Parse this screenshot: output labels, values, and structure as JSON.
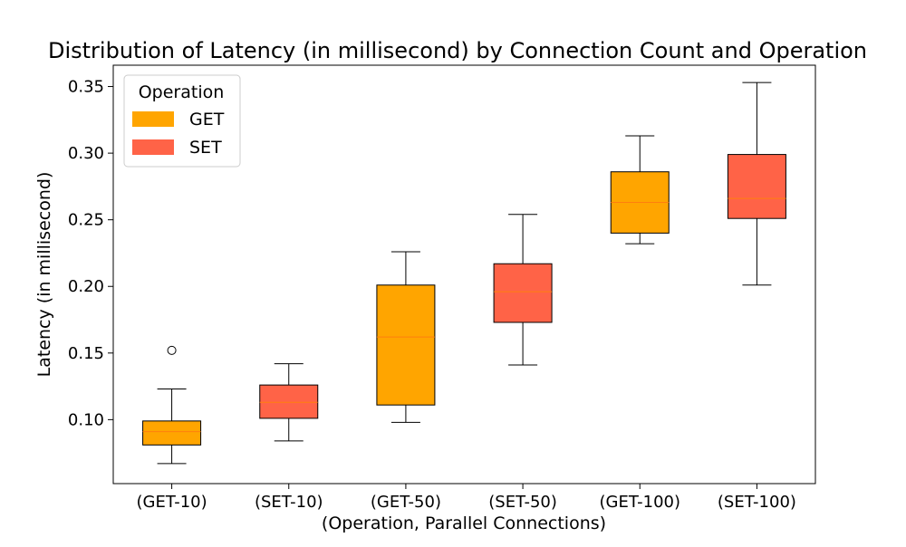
{
  "chart_data": {
    "type": "boxplot",
    "title": "Distribution of Latency (in millisecond) by Connection Count and Operation",
    "xlabel": "(Operation, Parallel Connections)",
    "ylabel": "Latency (in millisecond)",
    "ylim": [
      0.052,
      0.366
    ],
    "yticks": [
      0.1,
      0.15,
      0.2,
      0.25,
      0.3,
      0.35
    ],
    "ytick_labels": [
      "0.10",
      "0.15",
      "0.20",
      "0.25",
      "0.30",
      "0.35"
    ],
    "grid": false,
    "legend": {
      "title": "Operation",
      "placement": "top-left",
      "entries": [
        {
          "label": "GET",
          "color": "#FFA500"
        },
        {
          "label": "SET",
          "color": "#FF6347"
        }
      ]
    },
    "categories": [
      "(GET-10)",
      "(SET-10)",
      "(GET-50)",
      "(SET-50)",
      "(GET-100)",
      "(SET-100)"
    ],
    "boxes": [
      {
        "category": "(GET-10)",
        "operation": "GET",
        "whisker_low": 0.067,
        "q1": 0.081,
        "median": 0.091,
        "q3": 0.099,
        "whisker_high": 0.123,
        "outliers": [
          0.152
        ]
      },
      {
        "category": "(SET-10)",
        "operation": "SET",
        "whisker_low": 0.084,
        "q1": 0.101,
        "median": 0.113,
        "q3": 0.126,
        "whisker_high": 0.142,
        "outliers": []
      },
      {
        "category": "(GET-50)",
        "operation": "GET",
        "whisker_low": 0.098,
        "q1": 0.111,
        "median": 0.162,
        "q3": 0.201,
        "whisker_high": 0.226,
        "outliers": []
      },
      {
        "category": "(SET-50)",
        "operation": "SET",
        "whisker_low": 0.141,
        "q1": 0.173,
        "median": 0.196,
        "q3": 0.217,
        "whisker_high": 0.254,
        "outliers": []
      },
      {
        "category": "(GET-100)",
        "operation": "GET",
        "whisker_low": 0.232,
        "q1": 0.24,
        "median": 0.263,
        "q3": 0.286,
        "whisker_high": 0.313,
        "outliers": []
      },
      {
        "category": "(SET-100)",
        "operation": "SET",
        "whisker_low": 0.201,
        "q1": 0.251,
        "median": 0.266,
        "q3": 0.299,
        "whisker_high": 0.353,
        "outliers": []
      }
    ],
    "colors": {
      "GET": "#FFA500",
      "SET": "#FF6347",
      "median_line": "#FF7F0E"
    }
  }
}
